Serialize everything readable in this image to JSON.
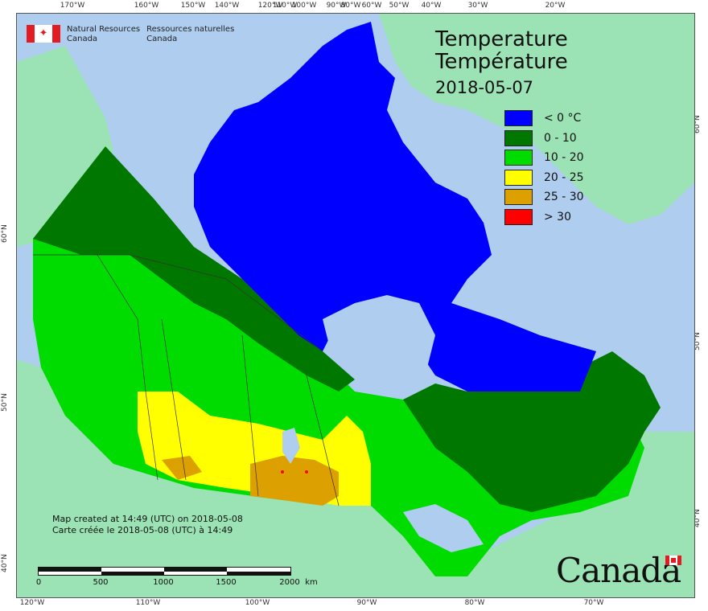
{
  "agency": {
    "en_line1": "Natural Resources",
    "en_line2": "Canada",
    "fr_line1": "Ressources naturelles",
    "fr_line2": "Canada"
  },
  "map": {
    "title_en": "Temperature",
    "title_fr": "Température",
    "date": "2018-05-07"
  },
  "legend": [
    {
      "label": "< 0 °C",
      "color": "#0000ff"
    },
    {
      "label": "0 - 10",
      "color": "#007800"
    },
    {
      "label": "10 - 20",
      "color": "#00dc00"
    },
    {
      "label": "20 - 25",
      "color": "#ffff00"
    },
    {
      "label": "25 - 30",
      "color": "#dca000"
    },
    {
      "label": "> 30",
      "color": "#ff0000"
    }
  ],
  "credits": {
    "en": "Map created at 14:49 (UTC) on 2018-05-08",
    "fr": "Carte créée le 2018-05-08 (UTC) à 14:49"
  },
  "scale": {
    "labels": [
      "0",
      "500",
      "1000",
      "1500",
      "2000"
    ],
    "unit": "km"
  },
  "ticks": {
    "top": [
      "170°W",
      "160°W",
      "150°W",
      "140°W",
      "120°W",
      "110°W",
      "100°W",
      "90°W",
      "80°W",
      "60°W",
      "50°W",
      "40°W",
      "30°W",
      "20°W"
    ],
    "bottom": [
      "120°W",
      "110°W",
      "100°W",
      "90°W",
      "80°W",
      "70°W"
    ],
    "left": [
      "60°N",
      "50°N",
      "40°N"
    ],
    "right": [
      "60°N",
      "50°N",
      "40°N"
    ]
  },
  "wordmark": "Canada",
  "colors": {
    "ocean": "#aecdef",
    "land_other": "#9be2b4",
    "lake": "#aecdef"
  }
}
